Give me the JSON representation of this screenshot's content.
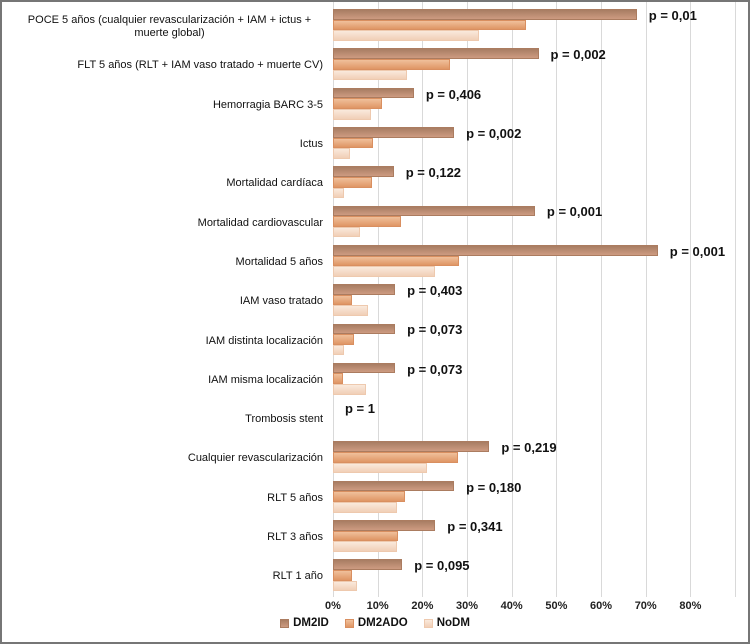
{
  "chart_data": {
    "type": "bar",
    "orientation": "horizontal-grouped",
    "title": "",
    "xlabel": "",
    "ylabel": "",
    "xlim": [
      0,
      92
    ],
    "grid": true,
    "gridlines_pct": [
      0,
      10,
      20,
      30,
      40,
      50,
      60,
      70,
      80,
      90
    ],
    "x_ticks": [
      "0%",
      "10%",
      "20%",
      "30%",
      "40%",
      "50%",
      "60%",
      "70%",
      "80%"
    ],
    "x_tick_step_pct": 10,
    "legend_position": "bottom",
    "categories": [
      "POCE 5 años (cualquier revascularización + IAM + ictus + muerte global)",
      "FLT 5 años (RLT + IAM vaso tratado + muerte CV)",
      "Hemorragia BARC 3-5",
      "Ictus",
      "Mortalidad cardíaca",
      "Mortalidad cardiovascular",
      "Mortalidad 5 años",
      "IAM vaso tratado",
      "IAM distinta localización",
      "IAM misma localización",
      "Trombosis stent",
      "Cualquier revascularización",
      "RLT 5 años",
      "RLT 3 años",
      "RLT 1 año"
    ],
    "p_values": [
      "p = 0,01",
      "p = 0,002",
      "p = 0,406",
      "p = 0,002",
      "p = 0,122",
      "p = 0,001",
      "p = 0,001",
      "p = 0,403",
      "p = 0,073",
      "p = 0,073",
      "p = 1",
      "p = 0,219",
      "p = 0,180",
      "p = 0,341",
      "p = 0,095"
    ],
    "series": [
      {
        "name": "DM2ID",
        "fill_top": "#a87d63",
        "fill_bottom": "#cd9b81",
        "border": "#ab7c60",
        "values": [
          68,
          46,
          18.1,
          27.1,
          13.6,
          45.2,
          72.7,
          13.9,
          13.9,
          13.9,
          0,
          35,
          27.1,
          22.9,
          15.5
        ]
      },
      {
        "name": "DM2ADO",
        "fill_top": "#f0c09b",
        "fill_bottom": "#df9665",
        "border": "#d98f60",
        "values": [
          43.2,
          26.1,
          10.9,
          8.9,
          8.7,
          15.3,
          28.1,
          4.3,
          4.8,
          2.3,
          0,
          28,
          16.2,
          14.5,
          4.3
        ]
      },
      {
        "name": "NoDM",
        "fill_top": "#fae9dc",
        "fill_bottom": "#f1cfb7",
        "border": "#eec9ae",
        "values": [
          32.6,
          16.5,
          8.5,
          3.9,
          2.5,
          6.1,
          22.9,
          7.8,
          2.5,
          7.3,
          0,
          21,
          14.3,
          14.4,
          5.4
        ]
      }
    ]
  },
  "style": {
    "frame_border": "#767676",
    "gridline_color": "#d9d9d9",
    "text_color": "#111111"
  }
}
